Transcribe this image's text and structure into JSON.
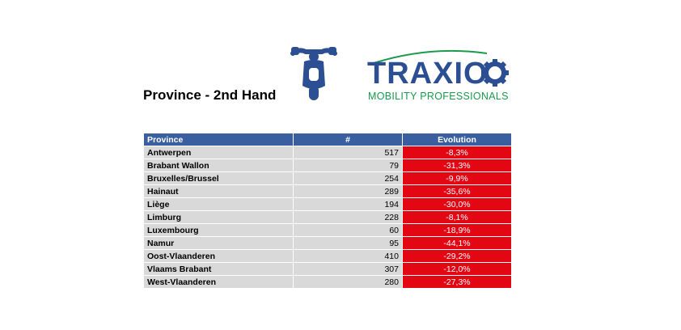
{
  "title": "Province - 2nd Hand",
  "logo": {
    "brand": "TRAXIO",
    "subtitle": "MOBILITY PROFESSIONALS",
    "brand_color": "#2c4f93",
    "accent_color": "#1a9a4a"
  },
  "icon": "motorcycle-icon",
  "table": {
    "headers": [
      "Province",
      "#",
      "Evolution"
    ],
    "header_color": "#3a5fa0",
    "evolution_color": "#e30613",
    "rows": [
      {
        "province": "Antwerpen",
        "count": "517",
        "evolution": "-8,3%"
      },
      {
        "province": "Brabant Wallon",
        "count": "79",
        "evolution": "-31,3%"
      },
      {
        "province": "Bruxelles/Brussel",
        "count": "254",
        "evolution": "-9,9%"
      },
      {
        "province": "Hainaut",
        "count": "289",
        "evolution": "-35,6%"
      },
      {
        "province": "Liège",
        "count": "194",
        "evolution": "-30,0%"
      },
      {
        "province": "Limburg",
        "count": "228",
        "evolution": "-8,1%"
      },
      {
        "province": "Luxembourg",
        "count": "60",
        "evolution": "-18,9%"
      },
      {
        "province": "Namur",
        "count": "95",
        "evolution": "-44,1%"
      },
      {
        "province": "Oost-Vlaanderen",
        "count": "410",
        "evolution": "-29,2%"
      },
      {
        "province": "Vlaams Brabant",
        "count": "307",
        "evolution": "-12,0%"
      },
      {
        "province": "West-Vlaanderen",
        "count": "280",
        "evolution": "-27,3%"
      }
    ]
  }
}
